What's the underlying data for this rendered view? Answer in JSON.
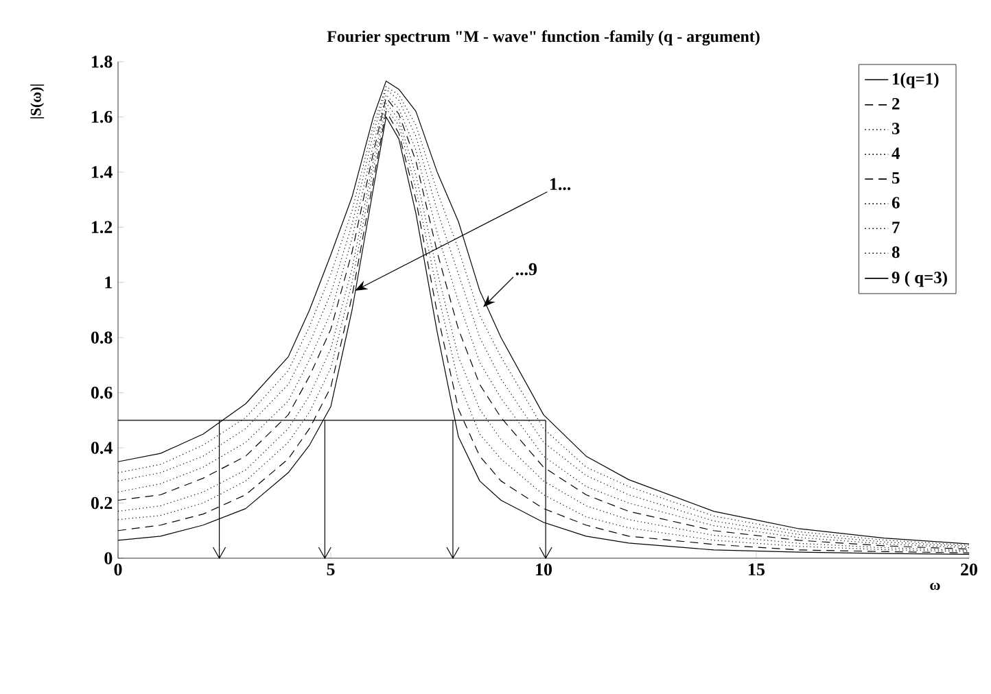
{
  "chart_data": {
    "type": "line",
    "title": "Fourier spectrum \"M - wave\" function -family (q - argument)",
    "xlabel": "ω",
    "ylabel": "|S(ω)|",
    "x": [
      0,
      1,
      2,
      3,
      4,
      4.5,
      5,
      5.5,
      6,
      6.3,
      6.6,
      7,
      7.5,
      8,
      8.5,
      9,
      10,
      11,
      12,
      14,
      16,
      18,
      20
    ],
    "series": [
      {
        "name": "1(q=1)",
        "color": "#000000",
        "line_style": "solid",
        "values": [
          0.065,
          0.08,
          0.12,
          0.18,
          0.31,
          0.41,
          0.55,
          0.9,
          1.34,
          1.6,
          1.52,
          1.25,
          0.82,
          0.44,
          0.28,
          0.21,
          0.13,
          0.08,
          0.055,
          0.03,
          0.022,
          0.017,
          0.014
        ]
      },
      {
        "name": "2",
        "color": "#000000",
        "line_style": "dashed",
        "values": [
          0.1,
          0.12,
          0.16,
          0.23,
          0.36,
          0.47,
          0.62,
          0.95,
          1.37,
          1.62,
          1.54,
          1.3,
          0.89,
          0.54,
          0.37,
          0.28,
          0.18,
          0.12,
          0.08,
          0.05,
          0.03,
          0.024,
          0.019
        ]
      },
      {
        "name": "3",
        "color": "#000000",
        "line_style": "dotted",
        "values": [
          0.14,
          0.155,
          0.2,
          0.28,
          0.42,
          0.53,
          0.69,
          1.0,
          1.41,
          1.63,
          1.57,
          1.34,
          0.97,
          0.64,
          0.45,
          0.36,
          0.23,
          0.15,
          0.11,
          0.065,
          0.043,
          0.031,
          0.024
        ]
      },
      {
        "name": "4",
        "color": "#000000",
        "line_style": "dotted",
        "values": [
          0.17,
          0.19,
          0.24,
          0.32,
          0.47,
          0.59,
          0.76,
          1.05,
          1.44,
          1.65,
          1.59,
          1.39,
          1.04,
          0.73,
          0.54,
          0.43,
          0.28,
          0.19,
          0.14,
          0.083,
          0.054,
          0.038,
          0.028
        ]
      },
      {
        "name": "5",
        "color": "#000000",
        "line_style": "dashed",
        "values": [
          0.21,
          0.23,
          0.29,
          0.37,
          0.52,
          0.66,
          0.83,
          1.11,
          1.47,
          1.67,
          1.61,
          1.44,
          1.11,
          0.83,
          0.63,
          0.51,
          0.33,
          0.23,
          0.17,
          0.1,
          0.065,
          0.045,
          0.033
        ]
      },
      {
        "name": "6",
        "color": "#000000",
        "line_style": "dotted",
        "values": [
          0.24,
          0.27,
          0.33,
          0.42,
          0.57,
          0.72,
          0.89,
          1.16,
          1.5,
          1.68,
          1.63,
          1.48,
          1.18,
          0.93,
          0.71,
          0.58,
          0.37,
          0.26,
          0.2,
          0.118,
          0.075,
          0.052,
          0.038
        ]
      },
      {
        "name": "7",
        "color": "#000000",
        "line_style": "dotted",
        "values": [
          0.28,
          0.31,
          0.37,
          0.47,
          0.63,
          0.78,
          0.96,
          1.21,
          1.54,
          1.7,
          1.66,
          1.53,
          1.26,
          1.03,
          0.8,
          0.65,
          0.42,
          0.3,
          0.23,
          0.135,
          0.086,
          0.059,
          0.043
        ]
      },
      {
        "name": "8",
        "color": "#000000",
        "line_style": "dotted",
        "values": [
          0.31,
          0.34,
          0.41,
          0.51,
          0.68,
          0.84,
          1.03,
          1.26,
          1.57,
          1.71,
          1.68,
          1.57,
          1.33,
          1.12,
          0.88,
          0.73,
          0.47,
          0.33,
          0.26,
          0.153,
          0.096,
          0.066,
          0.047
        ]
      },
      {
        "name": "9 ( q=3)",
        "color": "#000000",
        "line_style": "solid",
        "values": [
          0.35,
          0.38,
          0.45,
          0.56,
          0.73,
          0.9,
          1.1,
          1.31,
          1.6,
          1.73,
          1.7,
          1.62,
          1.4,
          1.22,
          0.97,
          0.8,
          0.52,
          0.37,
          0.285,
          0.17,
          0.107,
          0.073,
          0.052
        ]
      }
    ],
    "xlim": [
      0,
      20
    ],
    "xticks": [
      0,
      5,
      10,
      15,
      20
    ],
    "ylim": [
      0,
      1.8
    ],
    "yticks": [
      0,
      0.2,
      0.4,
      0.6,
      0.8,
      1,
      1.2,
      1.4,
      1.6,
      1.8
    ],
    "ref_lines": [
      {
        "axis": "y",
        "value": 0.5
      },
      {
        "axis": "x",
        "value": 2.38
      },
      {
        "axis": "x",
        "value": 4.86
      },
      {
        "axis": "x",
        "value": 7.87
      },
      {
        "axis": "x",
        "value": 10.05
      }
    ],
    "annotations": [
      {
        "text": "1...",
        "x": 5.57,
        "y": 0.97
      },
      {
        "text": "...9",
        "x": 8.58,
        "y": 0.91
      }
    ],
    "legend": "top right",
    "grid": false,
    "marker": "none"
  }
}
